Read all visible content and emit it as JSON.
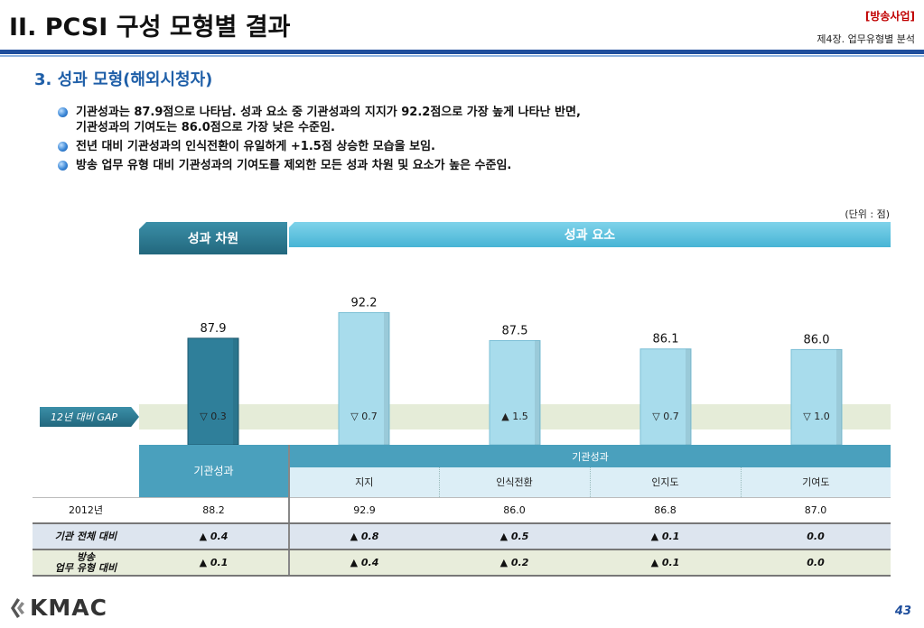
{
  "header": {
    "title": "II. PCSI 구성 모형별 결과",
    "tag": "[방송사업]",
    "chapter": "제4장. 업무유형별 분석"
  },
  "section_title": "3. 성과 모형(해외시청자)",
  "bullets": [
    "기관성과는 87.9점으로 나타남. 성과 요소 중 기관성과의 지지가 92.2점으로 가장 높게 나타난 반면,\n기관성과의 기여도는 86.0점으로 가장 낮은 수준임.",
    "전년 대비 기관성과의 인식전환이 유일하게 +1.5점 상승한 모습을 보임.",
    "방송 업무 유형 대비 기관성과의 기여도를 제외한 모든 성과 차원 및 요소가 높은 수준임."
  ],
  "unit_label": "(단위 : 점)",
  "dimension_label": "성과 차원",
  "element_label": "성과 요소",
  "gap_label": "12년 대비 GAP",
  "chart_data": {
    "type": "bar",
    "categories": [
      "기관성과",
      "지지",
      "인식전환",
      "인지도",
      "기여도"
    ],
    "values": [
      87.9,
      92.2,
      87.5,
      86.1,
      86.0
    ],
    "value_labels": [
      "87.9",
      "92.2",
      "87.5",
      "86.1",
      "86.0"
    ],
    "gaps": [
      "▽ 0.3",
      "▽ 0.7",
      "▲ 1.5",
      "▽ 0.7",
      "▽ 1.0"
    ],
    "colors": [
      "#2f7f9a",
      "#a8dcec",
      "#a8dcec",
      "#a8dcec",
      "#a8dcec"
    ],
    "ylim": [
      70,
      95
    ]
  },
  "table": {
    "group_header": "기관성과",
    "col_first": "기관성과",
    "sub_headers": [
      "지지",
      "인식전환",
      "인지도",
      "기여도"
    ],
    "rows": [
      {
        "label": "2012년",
        "values": [
          "88.2",
          "92.9",
          "86.0",
          "86.8",
          "87.0"
        ]
      },
      {
        "label": "기관 전체 대비",
        "values": [
          "▲ 0.4",
          "▲ 0.8",
          "▲ 0.5",
          "▲ 0.1",
          "0.0"
        ]
      },
      {
        "label_line1": "방송",
        "label_line2": "업무 유형 대비",
        "values": [
          "▲ 0.1",
          "▲ 0.4",
          "▲ 0.2",
          "▲ 0.1",
          "0.0"
        ]
      }
    ]
  },
  "footer": {
    "logo": "KMAC",
    "page": "43"
  }
}
